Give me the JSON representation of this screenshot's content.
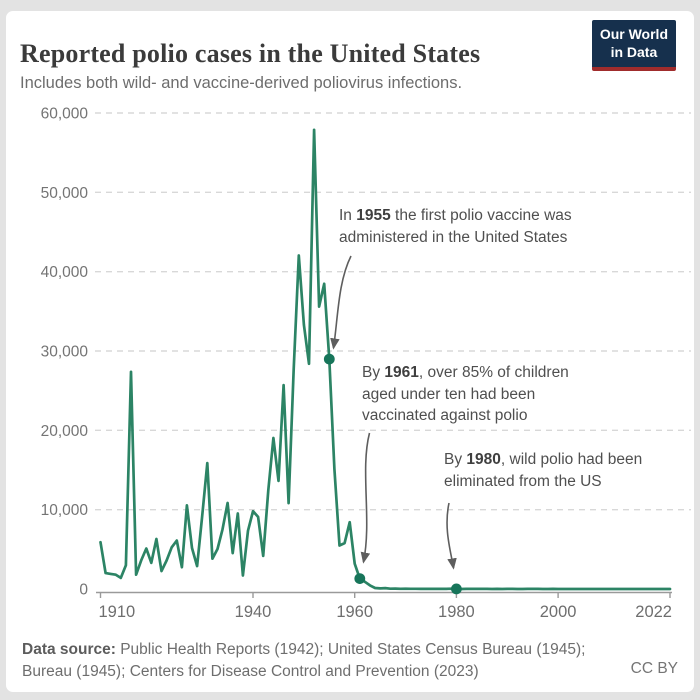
{
  "header": {
    "title": "Reported polio cases in the United States",
    "subtitle": "Includes both wild- and vaccine-derived poliovirus infections.",
    "logo": {
      "line1": "Our World",
      "line2": "in Data"
    }
  },
  "colors": {
    "logo_bg": "#16304d",
    "logo_stripe": "#a02c2c",
    "line_green": "#2c8465",
    "marker_green": "#17755a",
    "gridline": "#d8d8d8",
    "axis": "#9a9a9a",
    "arrow": "#5e5e5e"
  },
  "chart_data": {
    "type": "line",
    "title": "Reported polio cases in the United States",
    "xlabel": "",
    "ylabel": "",
    "xlim": [
      1910,
      2022
    ],
    "ylim": [
      0,
      60000
    ],
    "grid": "horizontal-dashed",
    "legend": "none",
    "x_ticks": [
      1910,
      1940,
      1960,
      1980,
      2000,
      2022
    ],
    "x_tick_labels": [
      "1910",
      "1940",
      "1960",
      "1980",
      "2000",
      "2022"
    ],
    "y_ticks": [
      0,
      10000,
      20000,
      30000,
      40000,
      50000,
      60000
    ],
    "y_tick_labels": [
      "0",
      "10,000",
      "20,000",
      "30,000",
      "40,000",
      "50,000",
      "60,000"
    ],
    "x": [
      1910,
      1911,
      1912,
      1913,
      1914,
      1915,
      1916,
      1917,
      1918,
      1919,
      1920,
      1921,
      1922,
      1923,
      1924,
      1925,
      1926,
      1927,
      1928,
      1929,
      1930,
      1931,
      1932,
      1933,
      1934,
      1935,
      1936,
      1937,
      1938,
      1939,
      1940,
      1941,
      1942,
      1943,
      1944,
      1945,
      1946,
      1947,
      1948,
      1949,
      1950,
      1951,
      1952,
      1953,
      1954,
      1955,
      1956,
      1957,
      1958,
      1959,
      1960,
      1961,
      1962,
      1963,
      1964,
      1965,
      1966,
      1967,
      1968,
      1969,
      1970,
      1971,
      1972,
      1973,
      1974,
      1975,
      1976,
      1977,
      1978,
      1979,
      1980,
      1981,
      1982,
      1983,
      1984,
      1985,
      1986,
      1987,
      1988,
      1989,
      1990,
      1991,
      1992,
      1993,
      1994,
      1995,
      1996,
      1997,
      1998,
      1999,
      2000,
      2001,
      2002,
      2003,
      2004,
      2005,
      2006,
      2007,
      2008,
      2009,
      2010,
      2011,
      2012,
      2013,
      2014,
      2015,
      2016,
      2017,
      2018,
      2019,
      2020,
      2021,
      2022
    ],
    "series": [
      {
        "name": "Reported polio cases",
        "color": "#2c8465",
        "values": [
          5900,
          2000,
          1900,
          1800,
          1400,
          3000,
          27363,
          1800,
          3600,
          5100,
          3300,
          6301,
          2255,
          3589,
          5262,
          6104,
          2750,
          10533,
          5169,
          2882,
          9220,
          15872,
          3820,
          5043,
          7510,
          10839,
          4523,
          9514,
          1705,
          7343,
          9804,
          9086,
          4167,
          12450,
          19029,
          13624,
          25698,
          10827,
          27726,
          42033,
          33300,
          28386,
          57879,
          35592,
          38476,
          28985,
          15140,
          5485,
          5787,
          8425,
          3190,
          1312,
          910,
          449,
          122,
          72,
          113,
          41,
          53,
          20,
          33,
          21,
          31,
          8,
          7,
          8,
          14,
          18,
          15,
          34,
          9,
          6,
          8,
          15,
          8,
          7,
          8,
          6,
          9,
          5,
          7,
          9,
          6,
          4,
          8,
          7,
          7,
          6,
          1,
          7,
          0,
          0,
          0,
          0,
          0,
          1,
          0,
          0,
          0,
          1,
          0,
          0,
          0,
          0,
          0,
          0,
          0,
          0,
          0,
          0,
          0,
          0,
          1
        ]
      }
    ],
    "annotations": [
      {
        "year": 1955,
        "value": 28985,
        "pre": "In ",
        "bold": "1955",
        "post": " the first polio vaccine was administered in the United States"
      },
      {
        "year": 1961,
        "value": 1312,
        "pre": "By ",
        "bold": "1961",
        "post": ", over 85% of children aged under ten had been vaccinated against polio"
      },
      {
        "year": 1980,
        "value": 9,
        "pre": "By ",
        "bold": "1980",
        "post": ", wild polio had been eliminated from the US"
      }
    ]
  },
  "footer": {
    "source_label": "Data source:",
    "source_line1": " Public Health Reports (1942); United States Census Bureau (1945);",
    "source_line2": "Bureau (1945); Centers for Disease Control and Prevention (2023)",
    "license": "CC BY"
  }
}
